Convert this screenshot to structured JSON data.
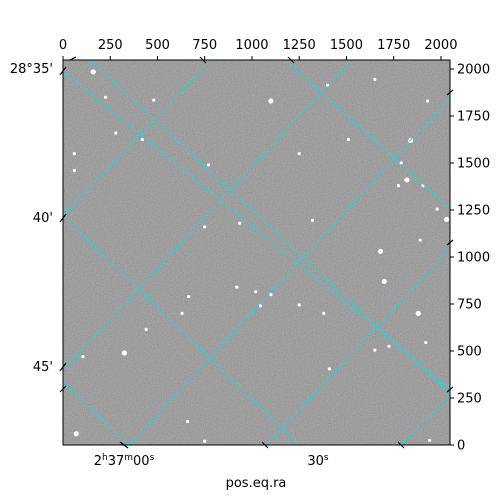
{
  "chart_data": {
    "type": "scatter",
    "title": "",
    "xlabel": "pos.eq.ra",
    "ylabel": "",
    "pixel_axes": {
      "x_ticks": [
        "0",
        "250",
        "500",
        "750",
        "1000",
        "1250",
        "1500",
        "1750",
        "2000"
      ],
      "y_ticks": [
        "0",
        "250",
        "500",
        "750",
        "1000",
        "1250",
        "1500",
        "1750",
        "2000"
      ],
      "xlim": [
        0,
        2048
      ],
      "ylim": [
        0,
        2048
      ]
    },
    "world_axes": {
      "dec_labels": [
        "28°35'",
        "40'",
        "45'"
      ],
      "ra_labels": [
        "2h37m00s",
        "30s"
      ]
    },
    "grid": true,
    "grid_color": "#00e5e5",
    "background_color": "#7f7f7f",
    "stars": [
      {
        "x": 160,
        "y": 1985
      },
      {
        "x": 1650,
        "y": 1945
      },
      {
        "x": 1400,
        "y": 1915
      },
      {
        "x": 225,
        "y": 1850
      },
      {
        "x": 480,
        "y": 1835
      },
      {
        "x": 1100,
        "y": 1830
      },
      {
        "x": 1930,
        "y": 1830
      },
      {
        "x": 280,
        "y": 1660
      },
      {
        "x": 420,
        "y": 1625
      },
      {
        "x": 1510,
        "y": 1625
      },
      {
        "x": 1840,
        "y": 1620
      },
      {
        "x": 1790,
        "y": 1500
      },
      {
        "x": 60,
        "y": 1550
      },
      {
        "x": 1250,
        "y": 1550
      },
      {
        "x": 770,
        "y": 1490
      },
      {
        "x": 1820,
        "y": 1410
      },
      {
        "x": 1775,
        "y": 1380
      },
      {
        "x": 1905,
        "y": 1380
      },
      {
        "x": 60,
        "y": 1460
      },
      {
        "x": 1980,
        "y": 1255
      },
      {
        "x": 2030,
        "y": 1200
      },
      {
        "x": 935,
        "y": 1180
      },
      {
        "x": 1320,
        "y": 1195
      },
      {
        "x": 750,
        "y": 1160
      },
      {
        "x": 1890,
        "y": 1090
      },
      {
        "x": 1680,
        "y": 1030
      },
      {
        "x": 920,
        "y": 840
      },
      {
        "x": 1020,
        "y": 815
      },
      {
        "x": 1100,
        "y": 800
      },
      {
        "x": 665,
        "y": 790
      },
      {
        "x": 1700,
        "y": 870
      },
      {
        "x": 1250,
        "y": 745
      },
      {
        "x": 1045,
        "y": 740
      },
      {
        "x": 630,
        "y": 700
      },
      {
        "x": 1380,
        "y": 700
      },
      {
        "x": 1880,
        "y": 700
      },
      {
        "x": 440,
        "y": 615
      },
      {
        "x": 1920,
        "y": 545
      },
      {
        "x": 1650,
        "y": 505
      },
      {
        "x": 1725,
        "y": 525
      },
      {
        "x": 325,
        "y": 490
      },
      {
        "x": 105,
        "y": 470
      },
      {
        "x": 1410,
        "y": 405
      },
      {
        "x": 660,
        "y": 125
      },
      {
        "x": 750,
        "y": 20
      },
      {
        "x": 70,
        "y": 60
      },
      {
        "x": 1940,
        "y": 25
      }
    ]
  }
}
